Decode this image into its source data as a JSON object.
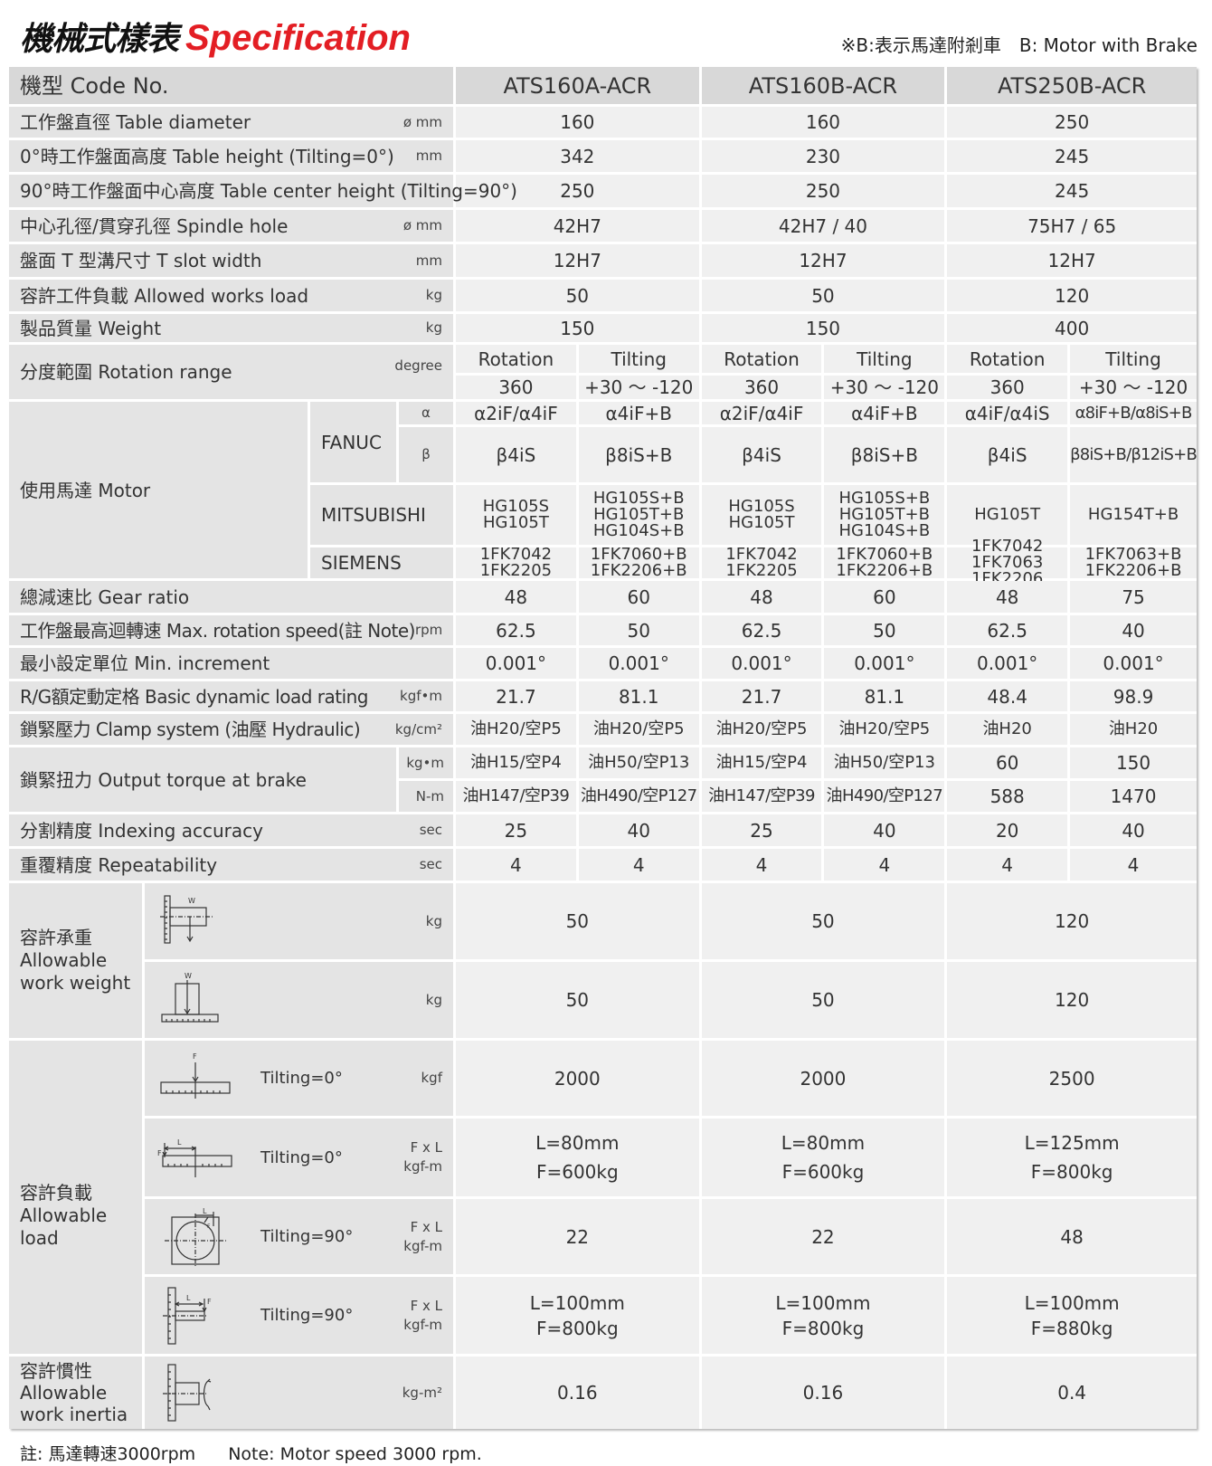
{
  "title": {
    "zh": "機械式樣表",
    "en": "Specification"
  },
  "brake_note": "※B:表示馬達附剎車　B: Motor with Brake",
  "header": {
    "label": "機型 Code No.",
    "models": [
      "ATS160A-ACR",
      "ATS160B-ACR",
      "ATS250B-ACR"
    ]
  },
  "table_diameter": {
    "label": "工作盤直徑 Table diameter",
    "unit": "ø mm",
    "values": [
      "160",
      "160",
      "250"
    ]
  },
  "table_height": {
    "label": "0°時工作盤面高度 Table height (Tilting=0°)",
    "unit": "mm",
    "values": [
      "342",
      "230",
      "245"
    ]
  },
  "center_height": {
    "label": "90°時工作盤面中心高度 Table center height (Tilting=90°)",
    "values": [
      "250",
      "250",
      "245"
    ]
  },
  "spindle_hole": {
    "label": "中心孔徑/貫穿孔徑 Spindle hole",
    "unit": "ø mm",
    "values": [
      "42H7",
      "42H7 / 40",
      "75H7 / 65"
    ]
  },
  "t_slot": {
    "label": "盤面 T 型溝尺寸 T slot width",
    "unit": "mm",
    "values": [
      "12H7",
      "12H7",
      "12H7"
    ]
  },
  "works_load": {
    "label": "容許工件負載 Allowed works load",
    "unit": "kg",
    "values": [
      "50",
      "50",
      "120"
    ]
  },
  "weight": {
    "label": "製品質量 Weight",
    "unit": "kg",
    "values": [
      "150",
      "150",
      "400"
    ]
  },
  "rotation_range": {
    "label": "分度範圍 Rotation range",
    "unit": "degree",
    "heads": [
      "Rotation",
      "Tilting",
      "Rotation",
      "Tilting",
      "Rotation",
      "Tilting"
    ],
    "values": [
      "360",
      "+30 ～ -120",
      "360",
      "+30 ～ -120",
      "360",
      "+30 ～ -120"
    ]
  },
  "motor": {
    "label": "使用馬達  Motor",
    "fanuc": {
      "label": "FANUC",
      "alpha_label": "α",
      "beta_label": "β",
      "alpha": [
        "α2iF/α4iF",
        "α4iF+B",
        "α2iF/α4iF",
        "α4iF+B",
        "α4iF/α4iS",
        "α8iF+B/α8iS+B"
      ],
      "beta": [
        "β4iS",
        "β8iS+B",
        "β4iS",
        "β8iS+B",
        "β4iS",
        "β8iS+B/β12iS+B"
      ]
    },
    "mitsubishi": {
      "label": "MITSUBISHI",
      "values": [
        [
          "HG105S",
          "HG105T"
        ],
        [
          "HG105S+B",
          "HG105T+B",
          "HG104S+B"
        ],
        [
          "HG105S",
          "HG105T"
        ],
        [
          "HG105S+B",
          "HG105T+B",
          "HG104S+B"
        ],
        [
          "HG105T"
        ],
        [
          "HG154T+B"
        ]
      ]
    },
    "siemens": {
      "label": "SIEMENS",
      "values": [
        [
          "1FK7042",
          "1FK2205"
        ],
        [
          "1FK7060+B",
          "1FK2206+B"
        ],
        [
          "1FK7042",
          "1FK2205"
        ],
        [
          "1FK7060+B",
          "1FK2206+B"
        ],
        [
          "1FK7042",
          "1FK7063",
          "1FK2206"
        ],
        [
          "1FK7063+B",
          "1FK2206+B"
        ]
      ]
    }
  },
  "gear_ratio": {
    "label": "總減速比 Gear ratio",
    "values": [
      "48",
      "60",
      "48",
      "60",
      "48",
      "75"
    ]
  },
  "max_speed": {
    "label": "工作盤最高迴轉速 Max. rotation speed(註 Note)",
    "unit": "rpm",
    "values": [
      "62.5",
      "50",
      "62.5",
      "50",
      "62.5",
      "40"
    ]
  },
  "min_increment": {
    "label": "最小設定單位 Min. increment",
    "values": [
      "0.001°",
      "0.001°",
      "0.001°",
      "0.001°",
      "0.001°",
      "0.001°"
    ]
  },
  "load_rating": {
    "label": "R/G額定動定格 Basic dynamic load rating",
    "unit": "kgf•m",
    "values": [
      "21.7",
      "81.1",
      "21.7",
      "81.1",
      "48.4",
      "98.9"
    ]
  },
  "clamp": {
    "label": "鎖緊壓力 Clamp system (油壓 Hydraulic)",
    "unit": "kg/cm²",
    "values": [
      "油H20/空P5",
      "油H20/空P5",
      "油H20/空P5",
      "油H20/空P5",
      "油H20",
      "油H20"
    ]
  },
  "torque": {
    "label": "鎖緊扭力 Output torque at brake",
    "kgm": {
      "unit": "kg•m",
      "values": [
        "油H15/空P4",
        "油H50/空P13",
        "油H15/空P4",
        "油H50/空P13",
        "60",
        "150"
      ]
    },
    "nm": {
      "unit": "N-m",
      "values": [
        "油H147/空P39",
        "油H490/空P127",
        "油H147/空P39",
        "油H490/空P127",
        "588",
        "1470"
      ]
    }
  },
  "indexing": {
    "label": "分割精度 Indexing accuracy",
    "unit": "sec",
    "values": [
      "25",
      "40",
      "25",
      "40",
      "20",
      "40"
    ]
  },
  "repeatability": {
    "label": "重覆精度 Repeatability",
    "unit": "sec",
    "values": [
      "4",
      "4",
      "4",
      "4",
      "4",
      "4"
    ]
  },
  "allowable_weight": {
    "label": [
      "容許承重",
      "Allowable",
      "work weight"
    ],
    "rows": [
      {
        "icon": "vertical-table-load-icon",
        "icon_label": "W",
        "unit": "kg",
        "values": [
          "50",
          "50",
          "120"
        ]
      },
      {
        "icon": "horizontal-table-load-icon",
        "icon_label": "W",
        "unit": "kg",
        "values": [
          "50",
          "50",
          "120"
        ]
      }
    ]
  },
  "allowable_load": {
    "label": [
      "容許負載",
      "Allowable",
      "load"
    ],
    "rows": [
      {
        "icon": "axial-force-icon",
        "icon_labels": [
          "F"
        ],
        "tilting": "Tilting=0°",
        "unit": [
          "kgf"
        ],
        "values": [
          [
            "2000"
          ],
          [
            "2000"
          ],
          [
            "2500"
          ]
        ]
      },
      {
        "icon": "offset-force-icon",
        "icon_labels": [
          "F",
          "L"
        ],
        "tilting": "Tilting=0°",
        "unit": [
          "F x L",
          "kgf-m"
        ],
        "values": [
          [
            "L=80mm",
            "F=600kg"
          ],
          [
            "L=80mm",
            "F=600kg"
          ],
          [
            "L=125mm",
            "F=800kg"
          ]
        ]
      },
      {
        "icon": "face-moment-icon",
        "icon_labels": [
          "L",
          "F"
        ],
        "tilting": "Tilting=90°",
        "unit": [
          "F x L",
          "kgf-m"
        ],
        "values": [
          [
            "22"
          ],
          [
            "22"
          ],
          [
            "48"
          ]
        ]
      },
      {
        "icon": "side-offset-force-icon",
        "icon_labels": [
          "L",
          "F"
        ],
        "tilting": "Tilting=90°",
        "unit": [
          "F x L",
          "kgf-m"
        ],
        "values": [
          [
            "L=100mm",
            "F=800kg"
          ],
          [
            "L=100mm",
            "F=800kg"
          ],
          [
            "L=100mm",
            "F=880kg"
          ]
        ]
      }
    ]
  },
  "allowable_inertia": {
    "label": [
      "容許慣性",
      "Allowable",
      "work inertia"
    ],
    "icon": "rotational-inertia-icon",
    "unit": "kg-m²",
    "values": [
      "0.16",
      "0.16",
      "0.4"
    ]
  },
  "footer": {
    "zh": "註: 馬達轉速3000rpm",
    "en": "Note: Motor speed 3000 rpm."
  }
}
